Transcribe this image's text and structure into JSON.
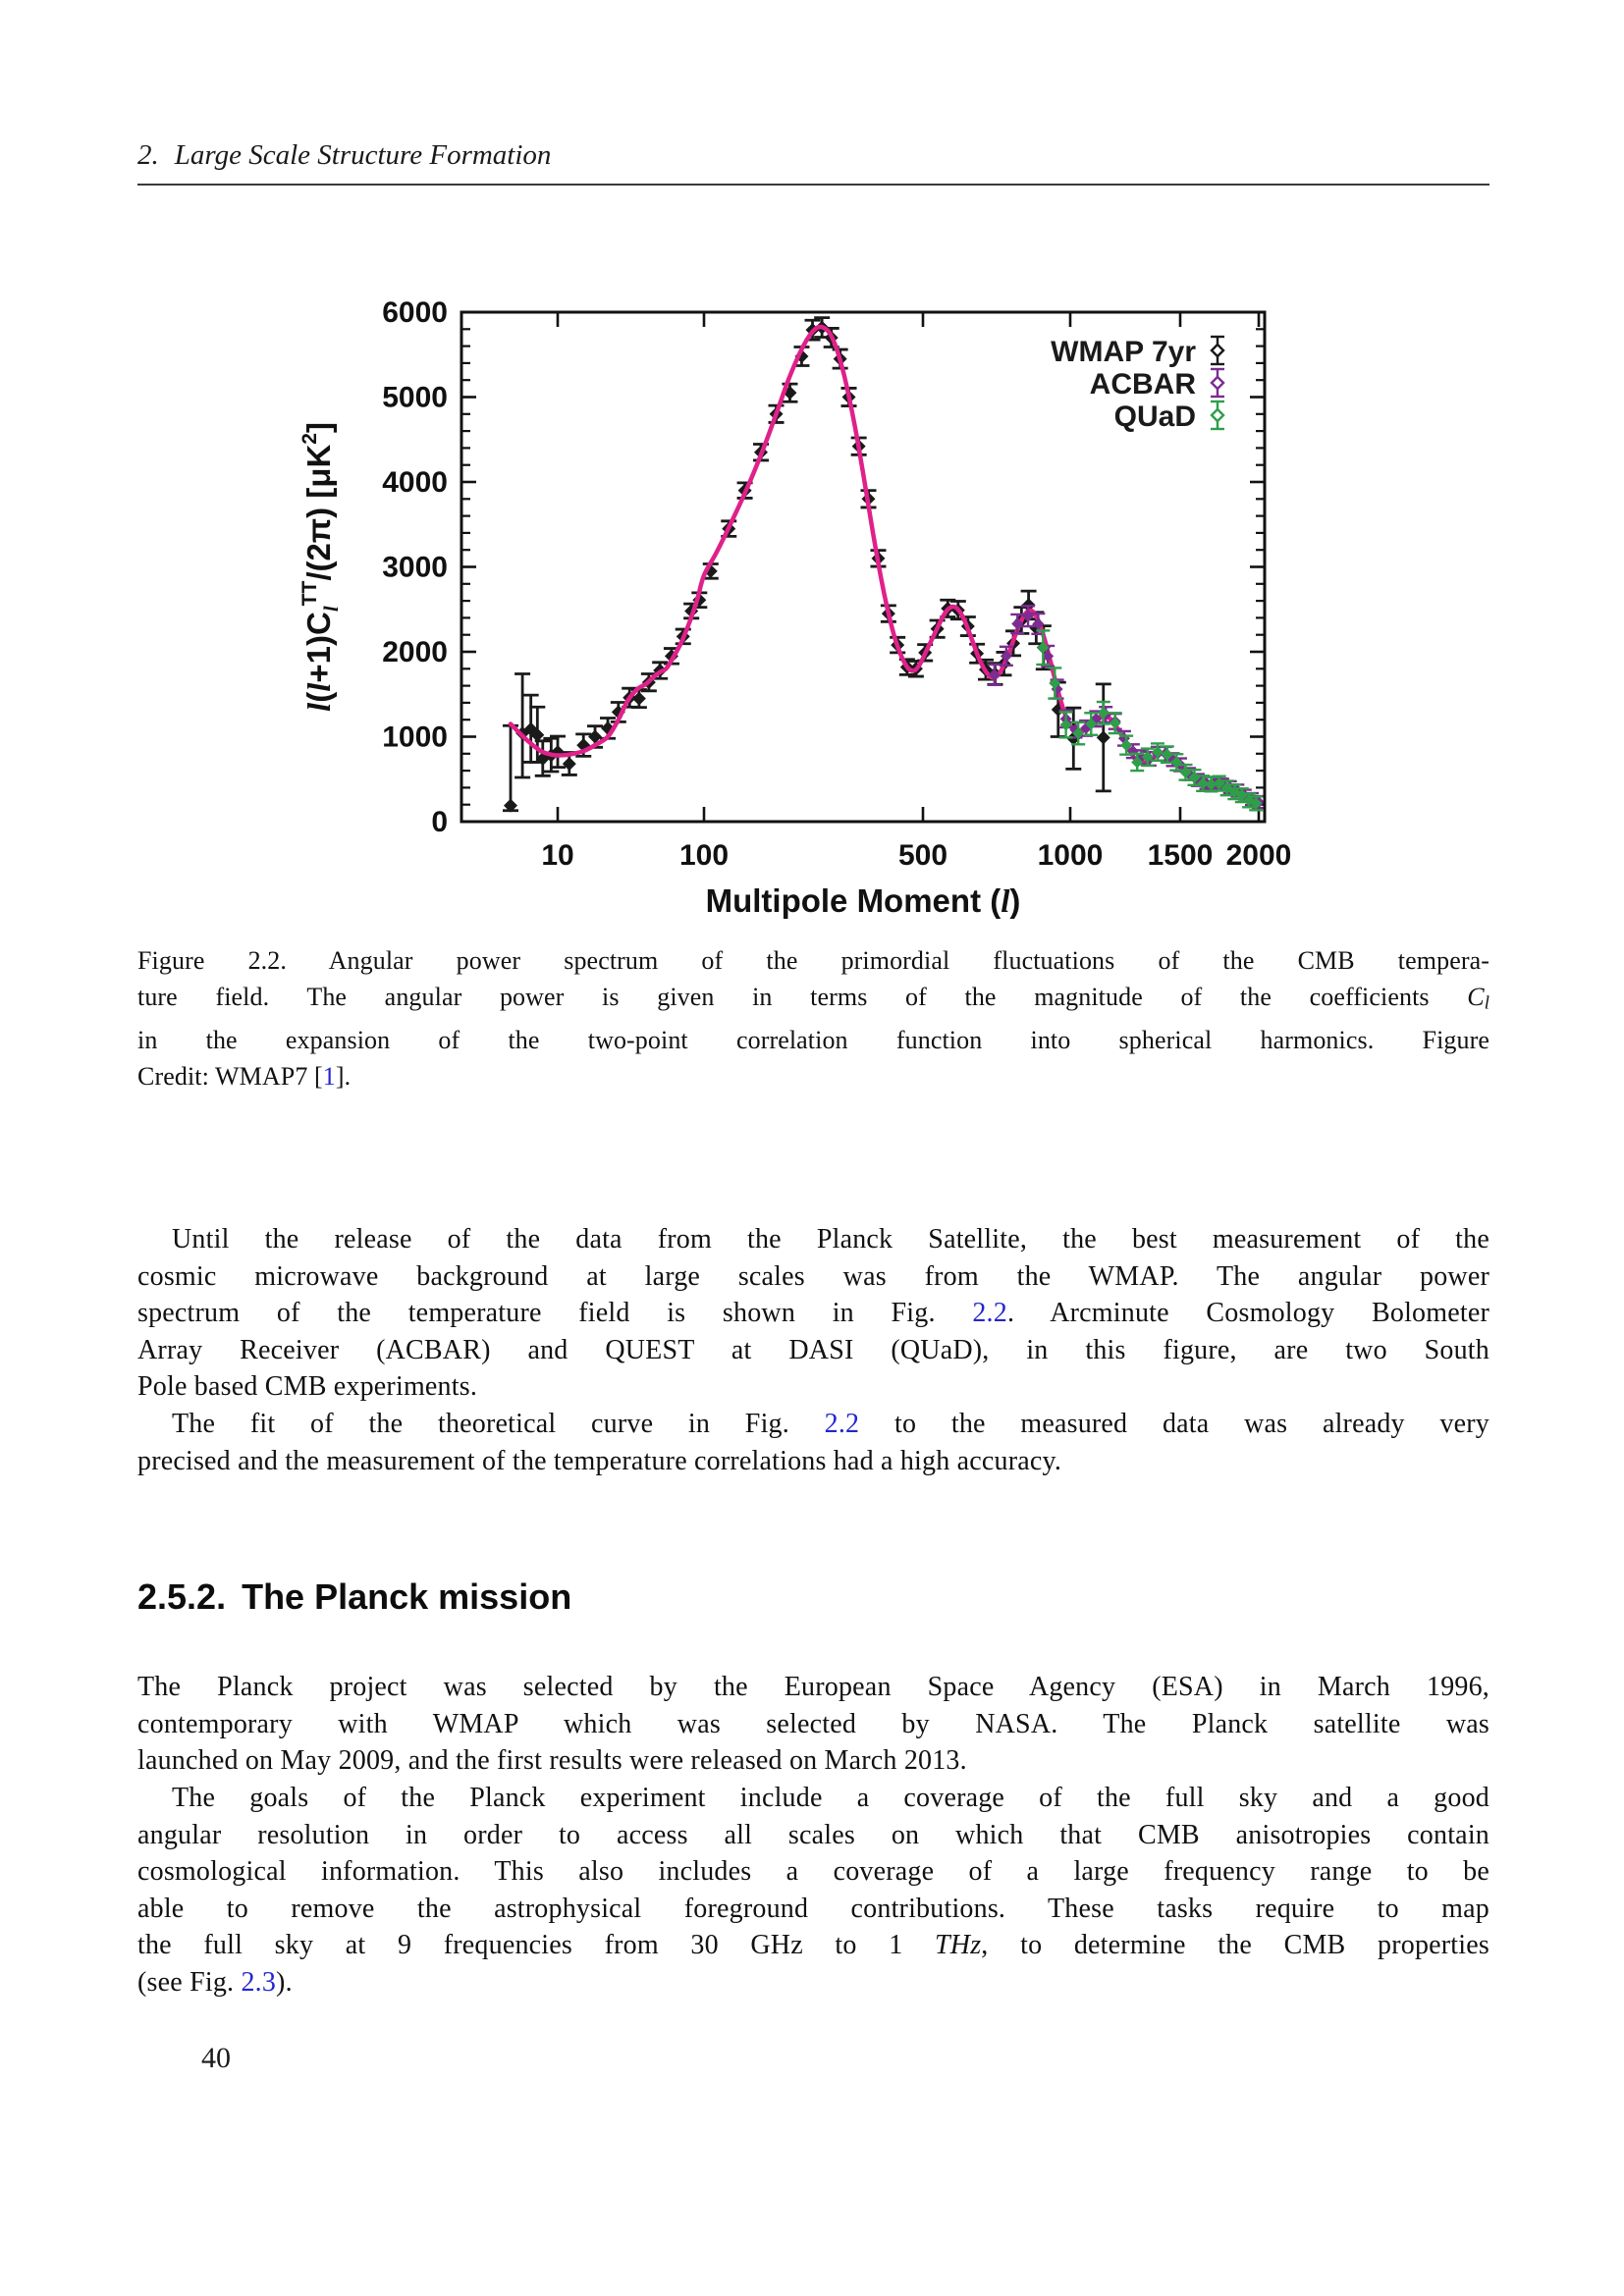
{
  "colors": {
    "link": "#2525cf",
    "text": "#111111",
    "rule": "#3a3a3a"
  },
  "header": {
    "number": "2.",
    "title": "Large Scale Structure Formation"
  },
  "page_number": "40",
  "section": {
    "number": "2.5.2.",
    "title": "The Planck mission"
  },
  "caption": {
    "indent_first": false,
    "lines": [
      [
        {
          "t": "Figure 2.2. Angular power spectrum of the primordial fluctuations of the CMB tempera-"
        }
      ],
      [
        {
          "t": "ture field. The angular power is given in terms of the magnitude of the coefficients "
        },
        {
          "t": "C",
          "s": "i"
        },
        {
          "t": "l",
          "s": "isub"
        }
      ],
      [
        {
          "t": "in the expansion of the two-point correlation function into spherical harmonics. Figure"
        }
      ],
      [
        {
          "t": "Credit: WMAP7 ["
        },
        {
          "t": "1",
          "s": "l"
        },
        {
          "t": "]."
        }
      ]
    ]
  },
  "paragraphs": {
    "p1": {
      "indent_first": true,
      "lines": [
        [
          {
            "t": "Until the release of the data from the Planck Satellite, the best measurement of the"
          }
        ],
        [
          {
            "t": "cosmic microwave background at large scales was from the WMAP. The angular power"
          }
        ],
        [
          {
            "t": "spectrum of the temperature field is shown in Fig. "
          },
          {
            "t": "2.2",
            "s": "l"
          },
          {
            "t": ". Arcminute Cosmology Bolometer"
          }
        ],
        [
          {
            "t": "Array Receiver (ACBAR) and QUEST at DASI (QUaD), in this figure, are two South"
          }
        ],
        [
          {
            "t": "Pole based CMB experiments."
          }
        ]
      ]
    },
    "p2": {
      "indent_first": true,
      "lines": [
        [
          {
            "t": "The fit of the theoretical curve in Fig. "
          },
          {
            "t": "2.2",
            "s": "l"
          },
          {
            "t": " to the measured data was already very"
          }
        ],
        [
          {
            "t": "precised and the measurement of the temperature correlations had a high accuracy."
          }
        ]
      ]
    },
    "p3": {
      "indent_first": false,
      "lines": [
        [
          {
            "t": "The Planck project was selected by the European Space Agency (ESA) in March 1996,"
          }
        ],
        [
          {
            "t": "contemporary with WMAP which was selected by NASA. The Planck satellite was"
          }
        ],
        [
          {
            "t": "launched on May 2009, and the first results were released on March 2013."
          }
        ]
      ]
    },
    "p4": {
      "indent_first": true,
      "lines": [
        [
          {
            "t": "The goals of the Planck experiment include a coverage of the full sky and a good"
          }
        ],
        [
          {
            "t": "angular resolution in order to access all scales on which that CMB anisotropies contain"
          }
        ],
        [
          {
            "t": "cosmological information. This also includes a coverage of a large frequency range to be"
          }
        ],
        [
          {
            "t": "able to remove the astrophysical foreground contributions. These tasks require to map"
          }
        ],
        [
          {
            "t": "the full sky at 9 frequencies from 30 GHz to 1 "
          },
          {
            "t": "THz",
            "s": "i"
          },
          {
            "t": ", to determine the CMB properties"
          }
        ],
        [
          {
            "t": "(see Fig. "
          },
          {
            "t": "2.3",
            "s": "l"
          },
          {
            "t": ")."
          }
        ]
      ]
    }
  },
  "chart_data": {
    "type": "scatter",
    "title": "",
    "xlabel": "Multipole Moment (l)",
    "ylabel": "l(l+1)Cl^TT/(2pi) [uK^2]",
    "xlabel_segments": [
      {
        "t": "Multipole Moment ("
      },
      {
        "t": "l",
        "s": "i"
      },
      {
        "t": ")"
      }
    ],
    "ylabel_segments": [
      {
        "t": "l",
        "s": "i"
      },
      {
        "t": "("
      },
      {
        "t": "l",
        "s": "i"
      },
      {
        "t": "+1)C"
      },
      {
        "t": "l",
        "s": "isub"
      },
      {
        "t": "TT",
        "s": "sup"
      },
      {
        "t": "/(2π) [μK"
      },
      {
        "t": "2",
        "s": "sup"
      },
      {
        "t": "]"
      }
    ],
    "xlim": [
      2,
      2000
    ],
    "ylim": [
      0,
      6000
    ],
    "x_scale": "log-compressed",
    "x_ticks": [
      10,
      100,
      500,
      1000,
      1500,
      2000
    ],
    "y_ticks": [
      0,
      1000,
      2000,
      3000,
      4000,
      5000,
      6000
    ],
    "y_minor_step": 200,
    "grid": false,
    "legend_position": "top-right",
    "curve_color": "#e0218a",
    "legend": [
      {
        "label": "WMAP 7yr",
        "color": "#1a1a1a"
      },
      {
        "label": "ACBAR",
        "color": "#7b2d90"
      },
      {
        "label": "QUaD",
        "color": "#2f9e49"
      }
    ],
    "model_curve": [
      [
        2,
        1150
      ],
      [
        3,
        1010
      ],
      [
        4,
        920
      ],
      [
        5,
        860
      ],
      [
        6,
        820
      ],
      [
        8,
        790
      ],
      [
        10,
        780
      ],
      [
        12,
        790
      ],
      [
        15,
        830
      ],
      [
        18,
        900
      ],
      [
        22,
        1000
      ],
      [
        26,
        1200
      ],
      [
        30,
        1420
      ],
      [
        35,
        1560
      ],
      [
        40,
        1620
      ],
      [
        45,
        1700
      ],
      [
        50,
        1760
      ],
      [
        55,
        1800
      ],
      [
        60,
        1900
      ],
      [
        70,
        2110
      ],
      [
        80,
        2360
      ],
      [
        90,
        2620
      ],
      [
        100,
        2900
      ],
      [
        110,
        3180
      ],
      [
        125,
        3600
      ],
      [
        140,
        4000
      ],
      [
        155,
        4400
      ],
      [
        170,
        4800
      ],
      [
        185,
        5180
      ],
      [
        200,
        5480
      ],
      [
        215,
        5700
      ],
      [
        228,
        5810
      ],
      [
        240,
        5820
      ],
      [
        252,
        5750
      ],
      [
        265,
        5570
      ],
      [
        280,
        5260
      ],
      [
        295,
        4880
      ],
      [
        310,
        4460
      ],
      [
        330,
        3870
      ],
      [
        350,
        3300
      ],
      [
        370,
        2810
      ],
      [
        390,
        2420
      ],
      [
        410,
        2120
      ],
      [
        430,
        1920
      ],
      [
        450,
        1800
      ],
      [
        470,
        1780
      ],
      [
        490,
        1860
      ],
      [
        510,
        2030
      ],
      [
        530,
        2230
      ],
      [
        550,
        2420
      ],
      [
        565,
        2510
      ],
      [
        580,
        2530
      ],
      [
        595,
        2470
      ],
      [
        610,
        2350
      ],
      [
        630,
        2140
      ],
      [
        650,
        1930
      ],
      [
        670,
        1780
      ],
      [
        690,
        1700
      ],
      [
        710,
        1720
      ],
      [
        730,
        1830
      ],
      [
        755,
        2040
      ],
      [
        780,
        2260
      ],
      [
        800,
        2400
      ],
      [
        820,
        2480
      ],
      [
        840,
        2470
      ],
      [
        860,
        2370
      ],
      [
        885,
        2160
      ],
      [
        910,
        1900
      ],
      [
        940,
        1580
      ],
      [
        970,
        1310
      ],
      [
        1000,
        1130
      ],
      [
        1030,
        1060
      ],
      [
        1060,
        1090
      ],
      [
        1090,
        1170
      ],
      [
        1120,
        1240
      ],
      [
        1150,
        1230
      ],
      [
        1180,
        1140
      ],
      [
        1210,
        1010
      ],
      [
        1240,
        860
      ],
      [
        1270,
        740
      ],
      [
        1300,
        690
      ],
      [
        1330,
        710
      ],
      [
        1360,
        760
      ],
      [
        1390,
        800
      ],
      [
        1420,
        800
      ],
      [
        1450,
        760
      ],
      [
        1480,
        700
      ],
      [
        1510,
        630
      ],
      [
        1550,
        540
      ],
      [
        1590,
        470
      ],
      [
        1630,
        430
      ],
      [
        1670,
        410
      ],
      [
        1710,
        400
      ],
      [
        1750,
        390
      ],
      [
        1790,
        370
      ],
      [
        1830,
        340
      ],
      [
        1870,
        310
      ],
      [
        1910,
        280
      ],
      [
        1950,
        250
      ],
      [
        2000,
        215
      ]
    ],
    "series": [
      {
        "name": "WMAP 7yr",
        "color": "#1a1a1a",
        "points": [
          [
            2,
            190,
            60,
            940
          ],
          [
            3,
            1040,
            520,
            700
          ],
          [
            4,
            1090,
            390,
            400
          ],
          [
            5,
            1020,
            320,
            330
          ],
          [
            6,
            740,
            200,
            210
          ],
          [
            8,
            780,
            190,
            200
          ],
          [
            10,
            820,
            180,
            185
          ],
          [
            12,
            680,
            130,
            135
          ],
          [
            15,
            900,
            130,
            130
          ],
          [
            18,
            1000,
            125,
            125
          ],
          [
            22,
            1100,
            120,
            120
          ],
          [
            26,
            1290,
            115,
            115
          ],
          [
            31,
            1460,
            110,
            110
          ],
          [
            36,
            1450,
            105,
            105
          ],
          [
            42,
            1640,
            100,
            100
          ],
          [
            50,
            1780,
            95,
            95
          ],
          [
            60,
            1950,
            90,
            90
          ],
          [
            72,
            2180,
            85,
            85
          ],
          [
            82,
            2480,
            85,
            85
          ],
          [
            93,
            2610,
            85,
            85
          ],
          [
            105,
            2950,
            85,
            85
          ],
          [
            120,
            3450,
            90,
            90
          ],
          [
            135,
            3900,
            90,
            90
          ],
          [
            152,
            4350,
            95,
            95
          ],
          [
            170,
            4800,
            100,
            100
          ],
          [
            188,
            5050,
            105,
            105
          ],
          [
            205,
            5480,
            110,
            110
          ],
          [
            222,
            5790,
            115,
            115
          ],
          [
            238,
            5820,
            115,
            115
          ],
          [
            255,
            5700,
            110,
            110
          ],
          [
            272,
            5450,
            110,
            110
          ],
          [
            290,
            5000,
            105,
            105
          ],
          [
            312,
            4420,
            100,
            100
          ],
          [
            335,
            3800,
            100,
            100
          ],
          [
            360,
            3100,
            95,
            95
          ],
          [
            388,
            2450,
            95,
            95
          ],
          [
            415,
            2080,
            90,
            90
          ],
          [
            445,
            1820,
            90,
            90
          ],
          [
            475,
            1800,
            90,
            90
          ],
          [
            505,
            1990,
            95,
            95
          ],
          [
            535,
            2270,
            100,
            100
          ],
          [
            562,
            2510,
            100,
            100
          ],
          [
            590,
            2490,
            105,
            105
          ],
          [
            618,
            2300,
            110,
            110
          ],
          [
            645,
            1980,
            110,
            110
          ],
          [
            672,
            1790,
            115,
            115
          ],
          [
            702,
            1740,
            125,
            125
          ],
          [
            732,
            1860,
            135,
            135
          ],
          [
            765,
            2100,
            145,
            145
          ],
          [
            795,
            2370,
            155,
            155
          ],
          [
            822,
            2550,
            165,
            165
          ],
          [
            852,
            2280,
            185,
            185
          ],
          [
            882,
            2050,
            255,
            255
          ],
          [
            945,
            1320,
            320,
            320
          ],
          [
            1012,
            980,
            360,
            360
          ],
          [
            1130,
            990,
            630,
            630
          ]
        ]
      },
      {
        "name": "ACBAR",
        "color": "#7b2d90",
        "points": [
          [
            700,
            1730,
            120
          ],
          [
            740,
            1950,
            110
          ],
          [
            780,
            2330,
            110
          ],
          [
            820,
            2420,
            120
          ],
          [
            860,
            2330,
            120
          ],
          [
            900,
            1950,
            120
          ],
          [
            940,
            1560,
            110
          ],
          [
            980,
            1210,
            100
          ],
          [
            1020,
            1080,
            90
          ],
          [
            1060,
            1100,
            90
          ],
          [
            1100,
            1210,
            90
          ],
          [
            1140,
            1260,
            90
          ],
          [
            1180,
            1180,
            90
          ],
          [
            1220,
            980,
            85
          ],
          [
            1260,
            830,
            80
          ],
          [
            1300,
            760,
            80
          ],
          [
            1340,
            740,
            80
          ],
          [
            1380,
            800,
            80
          ],
          [
            1420,
            800,
            80
          ],
          [
            1460,
            730,
            75
          ],
          [
            1500,
            670,
            75
          ],
          [
            1550,
            560,
            70
          ],
          [
            1600,
            490,
            70
          ],
          [
            1650,
            455,
            70
          ],
          [
            1700,
            455,
            70
          ],
          [
            1750,
            435,
            70
          ],
          [
            1800,
            405,
            70
          ],
          [
            1850,
            365,
            70
          ],
          [
            1900,
            305,
            70
          ],
          [
            1950,
            265,
            70
          ],
          [
            2000,
            230,
            70
          ]
        ]
      },
      {
        "name": "QUaD",
        "color": "#2f9e49",
        "points": [
          [
            880,
            2050,
            200
          ],
          [
            930,
            1630,
            180
          ],
          [
            980,
            1140,
            150
          ],
          [
            1030,
            1040,
            130
          ],
          [
            1080,
            1150,
            130
          ],
          [
            1130,
            1280,
            130
          ],
          [
            1180,
            1160,
            120
          ],
          [
            1230,
            900,
            110
          ],
          [
            1280,
            700,
            100
          ],
          [
            1330,
            760,
            100
          ],
          [
            1380,
            820,
            100
          ],
          [
            1430,
            790,
            95
          ],
          [
            1480,
            700,
            95
          ],
          [
            1530,
            580,
            90
          ],
          [
            1580,
            520,
            90
          ],
          [
            1630,
            450,
            90
          ],
          [
            1680,
            440,
            85
          ],
          [
            1730,
            450,
            85
          ],
          [
            1780,
            395,
            85
          ],
          [
            1830,
            350,
            85
          ],
          [
            1880,
            310,
            80
          ],
          [
            1930,
            250,
            80
          ],
          [
            1980,
            215,
            80
          ]
        ]
      }
    ]
  }
}
